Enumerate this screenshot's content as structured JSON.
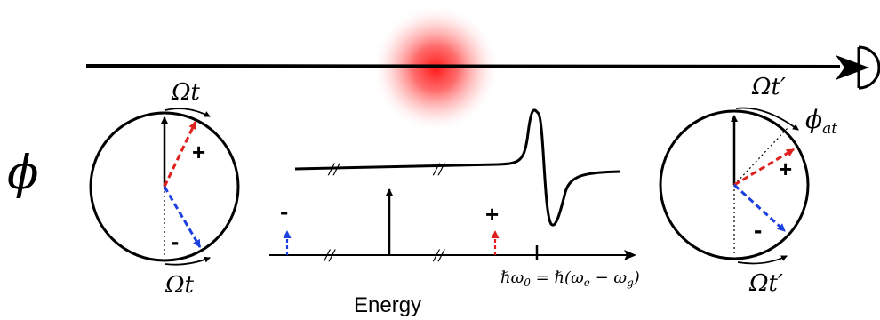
{
  "labels": {
    "phase_symbol": "ϕ",
    "omega_t_top_left": "Ωt",
    "omega_t_bottom_left": "Ωt",
    "omega_t_prime_top_right": "Ωt′",
    "omega_t_prime_bottom_right": "Ωt′",
    "phi_at_base": "ϕ",
    "phi_at_sub": "at",
    "plus": "+",
    "minus": "-",
    "resonance_formula_part1": "ℏω",
    "resonance_formula_sub": "0",
    "resonance_formula_part2": " = ℏ(ω",
    "resonance_formula_sub_e": "e",
    "resonance_formula_part3": " − ω",
    "resonance_formula_sub_g": "g",
    "resonance_formula_part4": ")",
    "energy_axis_label": "Energy",
    "axis_break": "//"
  },
  "colors": {
    "line": "#000000",
    "plus_arrow": "#e0201c",
    "minus_arrow": "#1c3fe0",
    "atom_glow": "#ff1a1a"
  },
  "icons": {
    "detector": "detector-half-circle-icon",
    "atom": "atom-cloud-icon"
  }
}
